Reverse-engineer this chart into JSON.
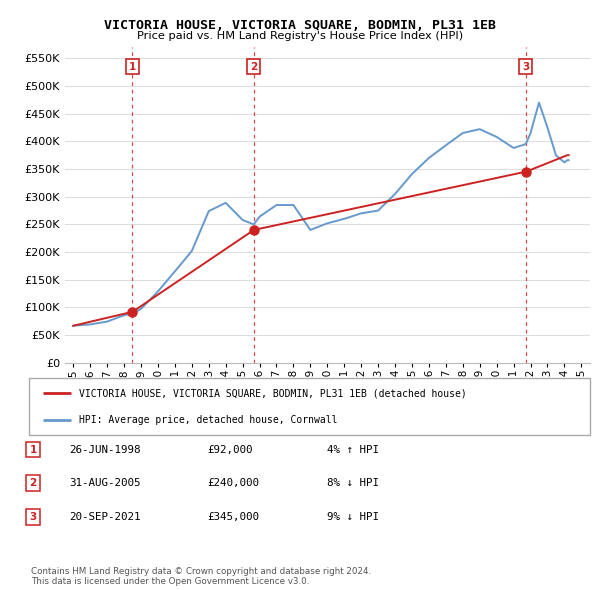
{
  "title": "VICTORIA HOUSE, VICTORIA SQUARE, BODMIN, PL31 1EB",
  "subtitle": "Price paid vs. HM Land Registry's House Price Index (HPI)",
  "ylim": [
    0,
    570000
  ],
  "yticks": [
    0,
    50000,
    100000,
    150000,
    200000,
    250000,
    300000,
    350000,
    400000,
    450000,
    500000,
    550000
  ],
  "xlim_start": 1994.5,
  "xlim_end": 2025.5,
  "background_color": "#ffffff",
  "grid_color": "#dddddd",
  "hpi_color": "#6699cc",
  "price_color": "#cc2222",
  "sales": [
    {
      "year": 1998.49,
      "price": 92000,
      "label": "1"
    },
    {
      "year": 2005.66,
      "price": 240000,
      "label": "2"
    },
    {
      "year": 2021.72,
      "price": 345000,
      "label": "3"
    }
  ],
  "legend_house_label": "VICTORIA HOUSE, VICTORIA SQUARE, BODMIN, PL31 1EB (detached house)",
  "legend_hpi_label": "HPI: Average price, detached house, Cornwall",
  "table_rows": [
    {
      "num": "1",
      "date": "26-JUN-1998",
      "price": "£92,000",
      "hpi": "4% ↑ HPI"
    },
    {
      "num": "2",
      "date": "31-AUG-2005",
      "price": "£240,000",
      "hpi": "8% ↓ HPI"
    },
    {
      "num": "3",
      "date": "20-SEP-2021",
      "price": "£345,000",
      "hpi": "9% ↓ HPI"
    }
  ],
  "footer": "Contains HM Land Registry data © Crown copyright and database right 2024.\nThis data is licensed under the Open Government Licence v3.0.",
  "xtick_years": [
    1995,
    1996,
    1997,
    1998,
    1999,
    2000,
    2001,
    2002,
    2003,
    2004,
    2005,
    2006,
    2007,
    2008,
    2009,
    2010,
    2011,
    2012,
    2013,
    2014,
    2015,
    2016,
    2017,
    2018,
    2019,
    2020,
    2021,
    2022,
    2023,
    2024,
    2025
  ]
}
